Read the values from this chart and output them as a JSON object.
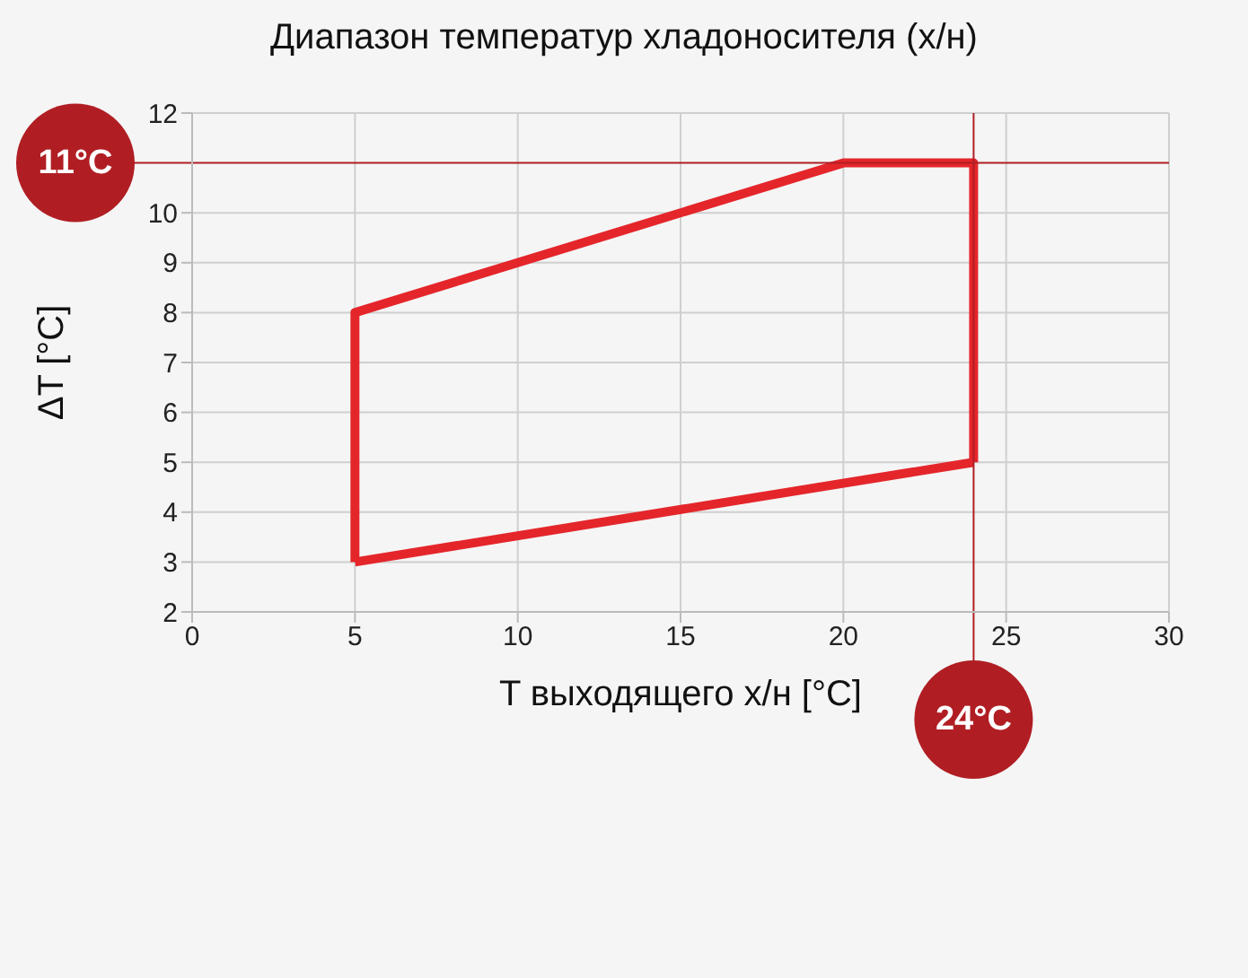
{
  "chart_data": {
    "type": "line",
    "title": "Диапазон температур хладоносителя (х/н)",
    "xlabel": "T выходящего х/н [°C]",
    "ylabel": "ΔT [°C]",
    "series": [
      {
        "color": "#e4262b",
        "x": [
          5,
          5,
          20,
          24,
          24
        ],
        "values": [
          3,
          8,
          11,
          11,
          5
        ]
      },
      {
        "color": "#e4262b",
        "x": [
          5,
          24
        ],
        "values": [
          3,
          5
        ]
      }
    ],
    "xlim": [
      0,
      30
    ],
    "xticks": [
      0,
      5,
      10,
      15,
      20,
      25,
      30
    ],
    "ylim": [
      2,
      12
    ],
    "yticks": [
      2,
      3,
      4,
      5,
      6,
      7,
      8,
      9,
      10,
      12
    ],
    "grid": true,
    "marker": "none",
    "line_style": "solid",
    "ref_lines": [
      {
        "axis": "y",
        "value": 11,
        "label": "11°C",
        "color": "#b01e23"
      },
      {
        "axis": "x",
        "value": 24,
        "label": "24°C",
        "color": "#b01e23"
      }
    ]
  }
}
